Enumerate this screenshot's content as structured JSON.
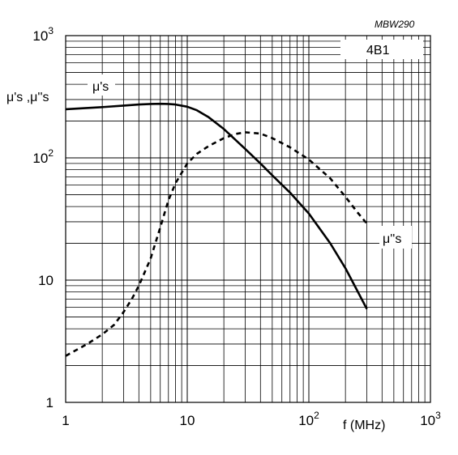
{
  "figure_tag": "MBW290",
  "chart_data": {
    "type": "line",
    "title": "",
    "material_label": "4B1",
    "xlabel": "f (MHz)",
    "ylabel": "μ's ,μ''s",
    "x_scale": "log",
    "y_scale": "log",
    "xlim": [
      1,
      1000
    ],
    "ylim": [
      1,
      1000
    ],
    "grid": true,
    "x_ticks": [
      {
        "value": 1,
        "label": "1"
      },
      {
        "value": 10,
        "label": "10"
      },
      {
        "value": 100,
        "label": "10",
        "exp": "2"
      },
      {
        "value": 1000,
        "label": "10",
        "exp": "3"
      }
    ],
    "y_ticks": [
      {
        "value": 1,
        "label": "1"
      },
      {
        "value": 10,
        "label": "10"
      },
      {
        "value": 100,
        "label": "10",
        "exp": "2"
      },
      {
        "value": 1000,
        "label": "10",
        "exp": "3"
      }
    ],
    "series": [
      {
        "name": "μ's",
        "style": "solid",
        "color": "#000000",
        "points": [
          [
            1,
            250
          ],
          [
            2,
            260
          ],
          [
            3,
            268
          ],
          [
            4,
            273
          ],
          [
            5,
            276
          ],
          [
            6,
            277
          ],
          [
            7,
            276
          ],
          [
            8,
            273
          ],
          [
            10,
            262
          ],
          [
            12,
            245
          ],
          [
            15,
            215
          ],
          [
            20,
            172
          ],
          [
            25,
            140
          ],
          [
            30,
            118
          ],
          [
            40,
            90
          ],
          [
            50,
            72
          ],
          [
            70,
            52
          ],
          [
            100,
            35
          ],
          [
            150,
            20
          ],
          [
            200,
            12.5
          ],
          [
            250,
            8.2
          ],
          [
            300,
            5.8
          ]
        ]
      },
      {
        "name": "μ''s",
        "style": "dashed",
        "color": "#000000",
        "points": [
          [
            1,
            2.4
          ],
          [
            1.5,
            3.0
          ],
          [
            2,
            3.6
          ],
          [
            2.5,
            4.3
          ],
          [
            3,
            5.5
          ],
          [
            3.5,
            7.0
          ],
          [
            4,
            9.0
          ],
          [
            5,
            15
          ],
          [
            6,
            27
          ],
          [
            7,
            45
          ],
          [
            8,
            62
          ],
          [
            10,
            90
          ],
          [
            12,
            108
          ],
          [
            15,
            125
          ],
          [
            20,
            145
          ],
          [
            25,
            157
          ],
          [
            30,
            162
          ],
          [
            40,
            158
          ],
          [
            50,
            145
          ],
          [
            70,
            122
          ],
          [
            100,
            97
          ],
          [
            150,
            68
          ],
          [
            200,
            48
          ],
          [
            250,
            36
          ],
          [
            300,
            29
          ]
        ]
      }
    ]
  }
}
